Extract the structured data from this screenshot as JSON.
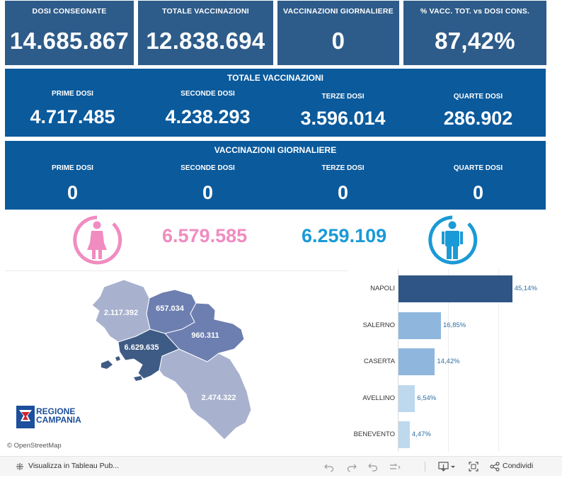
{
  "kpis": [
    {
      "label": "DOSI  CONSEGNATE",
      "value": "14.685.867"
    },
    {
      "label": "TOTALE VACCINAZIONI",
      "value": "12.838.694"
    },
    {
      "label": "VACCINAZIONI GIORNALIERE",
      "value": "0"
    },
    {
      "label": "% VACC. TOT. vs DOSI CONS.",
      "value": "87,42%"
    }
  ],
  "totale": {
    "title": "TOTALE VACCINAZIONI",
    "cols": [
      {
        "label": "PRIME DOSI",
        "value": "4.717.485"
      },
      {
        "label": "SECONDE DOSI",
        "value": "4.238.293"
      },
      {
        "label": "TERZE DOSI",
        "value": "3.596.014"
      },
      {
        "label": "QUARTE DOSI",
        "value": "286.902"
      }
    ]
  },
  "giornaliere": {
    "title": "VACCINAZIONI GIORNALIERE",
    "cols": [
      {
        "label": "PRIME DOSI",
        "value": "0"
      },
      {
        "label": "SECONDE DOSI",
        "value": "0"
      },
      {
        "label": "TERZE DOSI",
        "value": "0"
      },
      {
        "label": "QUARTE DOSI",
        "value": "0"
      }
    ]
  },
  "gender": {
    "female_value": "6.579.585",
    "male_value": "6.259.109",
    "female_color": "#f08cc0",
    "male_color": "#1a9ad6"
  },
  "map": {
    "provinces": [
      {
        "name": "caserta",
        "value": "2.117.392"
      },
      {
        "name": "benevento",
        "value": "657.034"
      },
      {
        "name": "avellino",
        "value": "960.311"
      },
      {
        "name": "napoli",
        "value": "6.629.635"
      },
      {
        "name": "salerno",
        "value": "2.474.322"
      }
    ],
    "logo_line1": "REGIONE",
    "logo_line2": "CAMPANIA",
    "attribution": "© OpenStreetMap"
  },
  "chart_data": {
    "type": "bar",
    "orientation": "horizontal",
    "categories": [
      "NAPOLI",
      "SALERNO",
      "CASERTA",
      "AVELLINO",
      "BENEVENTO"
    ],
    "values": [
      45.14,
      16.85,
      14.42,
      6.54,
      4.47
    ],
    "labels": [
      "45,14%",
      "16,85%",
      "14,42%",
      "6,54%",
      "4,47%"
    ],
    "colors": [
      "#2e5586",
      "#8fb7dd",
      "#8fb7dd",
      "#bed8ee",
      "#bed8ee"
    ],
    "xlim": [
      0,
      50
    ]
  },
  "toolbar": {
    "view_label": "Visualizza in Tableau Pub...",
    "share_label": "Condividi"
  }
}
